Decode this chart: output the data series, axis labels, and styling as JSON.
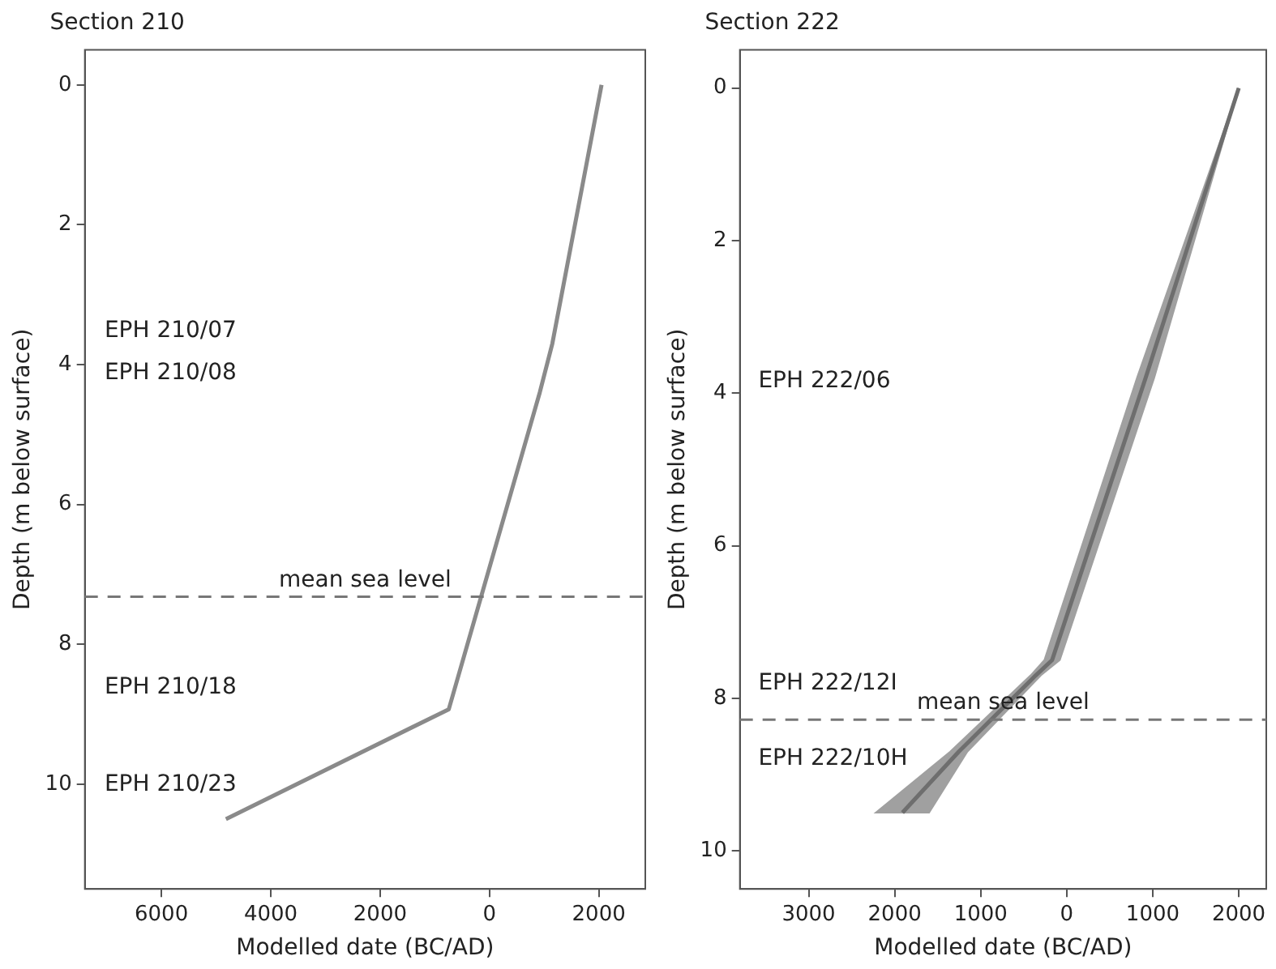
{
  "chart_data": [
    {
      "type": "line",
      "title": "Section 210",
      "xlabel": "Modelled date (BC/AD)",
      "ylabel": "Depth (m below surface)",
      "xlim": [
        -7400,
        2850
      ],
      "ylim": [
        11.5,
        -0.5
      ],
      "xticks": [
        {
          "value": -6000,
          "label": "6000"
        },
        {
          "value": -4000,
          "label": "4000"
        },
        {
          "value": -2000,
          "label": "2000"
        },
        0,
        2000
      ],
      "yticks": [
        0,
        2,
        4,
        6,
        8,
        10
      ],
      "grid": false,
      "series": [
        {
          "color": "#8a8a8a",
          "x": [
            2050,
            1150,
            920,
            -744,
            -4820
          ],
          "values": [
            0,
            3.7,
            4.4,
            8.93,
            10.5
          ]
        }
      ],
      "ref_lines": [
        {
          "axis": "y",
          "value": 7.32,
          "label": "mean sea level",
          "color": "#777777",
          "line_style": "dashed"
        }
      ],
      "annotations": [
        "EPH 210/07",
        "EPH 210/08",
        "EPH 210/18",
        "EPH 210/23"
      ]
    },
    {
      "type": "line",
      "title": "Section 222",
      "xlabel": "Modelled date (BC/AD)",
      "ylabel": "Depth (m below surface)",
      "xlim": [
        -3800,
        2320
      ],
      "ylim": [
        10.5,
        -0.5
      ],
      "xticks": [
        {
          "value": -3000,
          "label": "3000"
        },
        {
          "value": -2000,
          "label": "2000"
        },
        {
          "value": -1000,
          "label": "1000"
        },
        0,
        1000,
        2000
      ],
      "yticks": [
        0,
        2,
        4,
        6,
        8,
        10
      ],
      "grid": false,
      "series": [
        {
          "type": "area",
          "color": "#a0a0a0",
          "x": [
            2000,
            817,
            -260,
            -420,
            -1355,
            -2220,
            -1600,
            -1155,
            -300,
            -80,
            1017,
            2000
          ],
          "values": [
            0,
            3.8,
            7.5,
            7.7,
            8.7,
            9.5,
            9.5,
            8.7,
            7.7,
            7.5,
            3.8,
            0
          ]
        },
        {
          "color": "#6e6e6e",
          "x": [
            2000,
            917,
            -170,
            -360,
            -1255,
            -1910
          ],
          "values": [
            0,
            3.8,
            7.5,
            7.7,
            8.7,
            9.5
          ]
        }
      ],
      "ref_lines": [
        {
          "axis": "y",
          "value": 8.28,
          "label": "mean sea level",
          "color": "#777777",
          "line_style": "dashed"
        }
      ],
      "annotations": [
        "EPH 222/06",
        "EPH 222/12I",
        "EPH 222/10H"
      ]
    }
  ]
}
